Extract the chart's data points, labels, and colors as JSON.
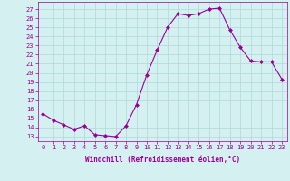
{
  "x": [
    0,
    1,
    2,
    3,
    4,
    5,
    6,
    7,
    8,
    9,
    10,
    11,
    12,
    13,
    14,
    15,
    16,
    17,
    18,
    19,
    20,
    21,
    22,
    23
  ],
  "y": [
    15.5,
    14.8,
    14.3,
    13.8,
    14.2,
    13.2,
    13.1,
    13.0,
    14.2,
    16.5,
    19.8,
    22.5,
    25.0,
    26.5,
    26.3,
    26.5,
    27.0,
    27.1,
    24.7,
    22.8,
    21.3,
    21.2,
    21.2,
    19.3
  ],
  "line_color": "#990099",
  "marker": "D",
  "marker_size": 2.0,
  "bg_color": "#d4f0f0",
  "grid_color": "#b0d8d8",
  "xlabel": "Windchill (Refroidissement éolien,°C)",
  "ylabel_ticks": [
    13,
    14,
    15,
    16,
    17,
    18,
    19,
    20,
    21,
    22,
    23,
    24,
    25,
    26,
    27
  ],
  "ylim": [
    12.5,
    27.8
  ],
  "xlim": [
    -0.5,
    23.5
  ],
  "xticks": [
    0,
    1,
    2,
    3,
    4,
    5,
    6,
    7,
    8,
    9,
    10,
    11,
    12,
    13,
    14,
    15,
    16,
    17,
    18,
    19,
    20,
    21,
    22,
    23
  ],
  "tick_fontsize": 5.0,
  "xlabel_fontsize": 5.5
}
